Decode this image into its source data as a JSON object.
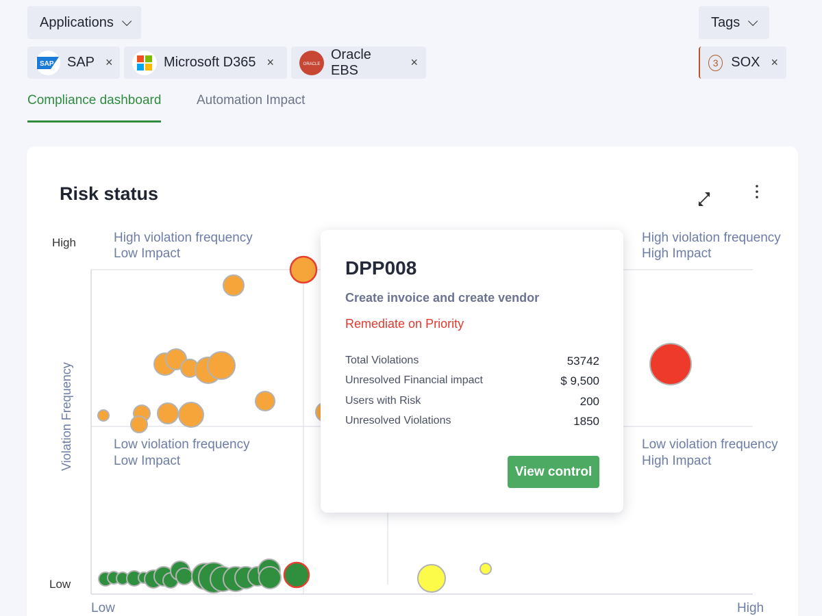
{
  "filters": {
    "applications_label": "Applications",
    "tags_label": "Tags"
  },
  "chips": [
    {
      "label": "SAP",
      "logo_text": "SAP",
      "remove": "×"
    },
    {
      "label": "Microsoft D365",
      "remove": "×"
    },
    {
      "label": "Oracle EBS",
      "logo_text": "ORACLE",
      "remove": "×"
    }
  ],
  "tag_chip": {
    "count": "3",
    "label": "SOX",
    "remove": "×"
  },
  "tabs": [
    {
      "label": "Compliance dashboard",
      "active": true
    },
    {
      "label": "Automation Impact",
      "active": false
    }
  ],
  "card": {
    "title": "Risk status"
  },
  "chart_data": {
    "type": "scatter",
    "ylabel": "Violation Frequency",
    "x_ticks": [
      "Low",
      "High"
    ],
    "y_ticks": [
      "High",
      "Low"
    ],
    "quadrants": [
      {
        "line1": "High violation frequency",
        "line2": "Low Impact"
      },
      {
        "line1": "High violation frequency",
        "line2": "High Impact"
      },
      {
        "line1": "Low violation frequency",
        "line2": "Low Impact"
      },
      {
        "line1": "Low violation frequency",
        "line2": "High Impact"
      }
    ],
    "colors": {
      "orange": "#f5a53a",
      "red": "#ee3a2a",
      "green": "#2f8f3f",
      "yellow": "#fdfb4a",
      "stroke": "#b3b3b3",
      "highlight": "#e84030"
    }
  },
  "tooltip": {
    "title": "DPP008",
    "subtitle": "Create invoice and create vendor",
    "status": "Remediate on Priority",
    "rows": [
      {
        "label": "Total Violations",
        "value": "53742"
      },
      {
        "label": "Unresolved Financial impact",
        "value": "$ 9,500"
      },
      {
        "label": "Users with Risk",
        "value": "200"
      },
      {
        "label": "Unresolved Violations",
        "value": "1850"
      }
    ],
    "button": "View control"
  }
}
